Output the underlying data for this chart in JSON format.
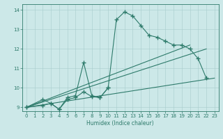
{
  "xlabel": "Humidex (Indice chaleur)",
  "background_color": "#cce8e8",
  "line_color": "#2d7a6a",
  "xlim": [
    -0.5,
    23.5
  ],
  "ylim": [
    8.8,
    14.3
  ],
  "xticks": [
    0,
    1,
    2,
    3,
    4,
    5,
    6,
    7,
    8,
    9,
    10,
    11,
    12,
    13,
    14,
    15,
    16,
    17,
    18,
    19,
    20,
    21,
    22,
    23
  ],
  "yticks": [
    9,
    10,
    11,
    12,
    13,
    14
  ],
  "curve1_x": [
    0,
    2,
    3,
    4,
    5,
    6,
    7,
    8,
    9,
    10,
    11,
    12,
    13,
    14,
    15,
    16,
    17,
    18,
    19,
    20,
    21,
    22
  ],
  "curve1_y": [
    9.0,
    9.4,
    9.2,
    8.9,
    9.5,
    9.6,
    11.3,
    9.6,
    9.5,
    10.0,
    13.5,
    13.9,
    13.7,
    13.2,
    12.7,
    12.6,
    12.4,
    12.2,
    12.2,
    12.0,
    11.5,
    10.5
  ],
  "curve2_x": [
    0,
    2,
    3,
    4,
    5,
    6,
    7,
    8,
    9,
    10
  ],
  "curve2_y": [
    9.0,
    9.1,
    9.2,
    8.9,
    9.4,
    9.5,
    9.8,
    9.55,
    9.5,
    10.0
  ],
  "line1_x": [
    0,
    23
  ],
  "line1_y": [
    9.0,
    10.5
  ],
  "line2_x": [
    0,
    20
  ],
  "line2_y": [
    9.0,
    12.2
  ],
  "line3_x": [
    0,
    22
  ],
  "line3_y": [
    9.0,
    12.0
  ]
}
